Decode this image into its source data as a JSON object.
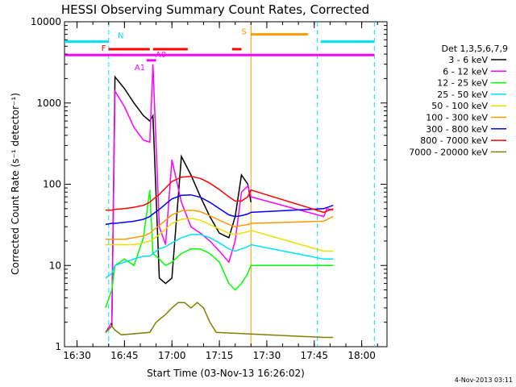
{
  "chart_data": {
    "type": "line",
    "title": "HESSI Observing Summary Count Rates, Corrected",
    "xlabel": "Start Time (03-Nov-13 16:26:02)",
    "ylabel": "Corrected Count Rate (s⁻¹ detector⁻¹)",
    "y_scale": "log",
    "ylim": [
      1,
      10000
    ],
    "xlim": [
      "16:26:02",
      "18:08:00"
    ],
    "x_ticks": [
      "16:30",
      "16:45",
      "17:00",
      "17:15",
      "17:30",
      "17:45",
      "18:00"
    ],
    "y_ticks": [
      "1",
      "10",
      "100",
      "1000",
      "10000"
    ],
    "grid": false,
    "legend_title": "Det 1,3,5,6,7,9",
    "legend_position": "right",
    "series": [
      {
        "name": "3 - 6 keV",
        "color": "#000000",
        "x": [
          "16:39",
          "16:41",
          "16:42",
          "16:45",
          "16:48",
          "16:51",
          "16:53",
          "16:54",
          "16:56",
          "16:58",
          "17:00",
          "17:03",
          "17:06",
          "17:09",
          "17:12",
          "17:15",
          "17:18",
          "17:20",
          "17:22",
          "17:24",
          "17:25"
        ],
        "y": [
          1.5,
          1.8,
          2100,
          1500,
          1000,
          700,
          600,
          700,
          7,
          6,
          7,
          220,
          130,
          70,
          40,
          25,
          22,
          40,
          130,
          100,
          60
        ]
      },
      {
        "name": "6 - 12 keV",
        "color": "#ff00ff",
        "x": [
          "16:39",
          "16:41",
          "16:42",
          "16:45",
          "16:48",
          "16:51",
          "16:53",
          "16:54",
          "16:56",
          "16:58",
          "17:00",
          "17:03",
          "17:06",
          "17:09",
          "17:12",
          "17:15",
          "17:18",
          "17:20",
          "17:22",
          "17:24",
          "17:25",
          "17:48",
          "17:49",
          "17:51"
        ],
        "y": [
          1.5,
          2,
          1400,
          900,
          500,
          350,
          330,
          3000,
          30,
          18,
          200,
          60,
          30,
          25,
          20,
          15,
          11,
          20,
          80,
          95,
          70,
          40,
          50,
          48
        ]
      },
      {
        "name": "12 - 25 keV",
        "color": "#00ff00",
        "x": [
          "16:39",
          "16:41",
          "16:42",
          "16:45",
          "16:48",
          "16:51",
          "16:53",
          "16:54",
          "16:56",
          "16:58",
          "17:00",
          "17:03",
          "17:06",
          "17:09",
          "17:12",
          "17:15",
          "17:18",
          "17:20",
          "17:22",
          "17:24",
          "17:25",
          "17:48",
          "17:51"
        ],
        "y": [
          3,
          5,
          10,
          12,
          10,
          22,
          85,
          14,
          12,
          10,
          11,
          14,
          16,
          16,
          14,
          11,
          6,
          5,
          6,
          8,
          10,
          10,
          10
        ]
      },
      {
        "name": "25 - 50 keV",
        "color": "#00e0ff",
        "x": [
          "16:39",
          "16:41",
          "16:42",
          "16:45",
          "16:48",
          "16:51",
          "16:53",
          "16:54",
          "16:56",
          "16:58",
          "17:00",
          "17:03",
          "17:06",
          "17:09",
          "17:12",
          "17:15",
          "17:18",
          "17:20",
          "17:22",
          "17:24",
          "17:25",
          "17:48",
          "17:51"
        ],
        "y": [
          7,
          8,
          10,
          11,
          12,
          13,
          13,
          14,
          16,
          17,
          19,
          22,
          24,
          24,
          22,
          19,
          16,
          15,
          16,
          17,
          18,
          12,
          12
        ]
      },
      {
        "name": "50 - 100 keV",
        "color": "#e8e000",
        "x": [
          "16:39",
          "16:41",
          "16:42",
          "16:45",
          "16:48",
          "16:51",
          "16:53",
          "16:54",
          "16:56",
          "16:58",
          "17:00",
          "17:03",
          "17:06",
          "17:09",
          "17:12",
          "17:15",
          "17:18",
          "17:20",
          "17:22",
          "17:24",
          "17:25",
          "17:48",
          "17:51"
        ],
        "y": [
          18,
          18,
          18,
          18,
          18,
          19,
          20,
          21,
          24,
          28,
          33,
          37,
          38,
          36,
          32,
          28,
          25,
          24,
          25,
          26,
          27,
          15,
          15
        ]
      },
      {
        "name": "100 - 300 keV",
        "color": "#ff9900",
        "x": [
          "16:39",
          "16:41",
          "16:42",
          "16:45",
          "16:48",
          "16:51",
          "16:53",
          "16:54",
          "16:56",
          "16:58",
          "17:00",
          "17:03",
          "17:06",
          "17:09",
          "17:12",
          "17:15",
          "17:18",
          "17:20",
          "17:22",
          "17:24",
          "17:25",
          "17:48",
          "17:51"
        ],
        "y": [
          21,
          21,
          21,
          21,
          22,
          23,
          25,
          27,
          31,
          36,
          42,
          47,
          48,
          46,
          41,
          36,
          32,
          30,
          31,
          32,
          33,
          35,
          40
        ]
      },
      {
        "name": "300 - 800 keV",
        "color": "#0000ff",
        "x": [
          "16:39",
          "16:41",
          "16:42",
          "16:45",
          "16:48",
          "16:51",
          "16:53",
          "16:54",
          "16:56",
          "16:58",
          "17:00",
          "17:03",
          "17:06",
          "17:09",
          "17:12",
          "17:15",
          "17:18",
          "17:20",
          "17:22",
          "17:24",
          "17:25",
          "17:48",
          "17:51"
        ],
        "y": [
          32,
          33,
          33,
          34,
          35,
          37,
          40,
          43,
          49,
          57,
          66,
          73,
          74,
          69,
          60,
          50,
          42,
          40,
          41,
          43,
          45,
          50,
          55
        ]
      },
      {
        "name": "800 - 7000 keV",
        "color": "#ff0000",
        "x": [
          "16:39",
          "16:41",
          "16:42",
          "16:45",
          "16:48",
          "16:51",
          "16:53",
          "16:54",
          "16:56",
          "16:58",
          "17:00",
          "17:03",
          "17:06",
          "17:09",
          "17:12",
          "17:15",
          "17:18",
          "17:20",
          "17:22",
          "17:24",
          "17:25",
          "17:48",
          "17:51"
        ],
        "y": [
          48,
          48,
          49,
          50,
          52,
          55,
          60,
          65,
          75,
          90,
          108,
          122,
          125,
          118,
          103,
          86,
          70,
          62,
          62,
          70,
          85,
          45,
          50
        ]
      },
      {
        "name": "7000 - 20000 keV",
        "color": "#808000",
        "x": [
          "16:39",
          "16:41",
          "16:42",
          "16:44",
          "16:53",
          "16:55",
          "16:58",
          "17:00",
          "17:02",
          "17:04",
          "17:06",
          "17:08",
          "17:10",
          "17:12",
          "17:14",
          "17:48",
          "17:51"
        ],
        "y": [
          1.5,
          1.8,
          1.6,
          1.4,
          1.5,
          2,
          2.5,
          3,
          3.5,
          3.5,
          3,
          3.5,
          3,
          2,
          1.5,
          1.3,
          1.3
        ]
      }
    ],
    "annotations": {
      "night_N": {
        "label": "N",
        "color": "#00e0ff",
        "y": 5700,
        "spans": [
          [
            "16:26",
            "16:40"
          ],
          [
            "17:47",
            "18:04"
          ]
        ]
      },
      "flare_F": {
        "label": "F",
        "color": "#ff0000",
        "y": 4600,
        "spans": [
          [
            "16:40",
            "16:53"
          ],
          [
            "16:54",
            "17:05"
          ],
          [
            "17:19",
            "17:22"
          ]
        ]
      },
      "saa_S": {
        "label": "S",
        "color": "#ff9900",
        "y": 7000,
        "spans": [
          [
            "17:25",
            "17:43"
          ]
        ]
      },
      "attenuator": {
        "labels": [
          "A1",
          "A0"
        ],
        "color": "#ff00ff",
        "y": 3350,
        "spans": [
          [
            "16:52",
            "16:55"
          ]
        ]
      },
      "decimation_line": {
        "color": "#ff00ff",
        "y": 3900,
        "spans": [
          [
            "16:26",
            "18:04"
          ]
        ]
      }
    },
    "vertical_lines": [
      {
        "x": "16:40",
        "color": "#00e0ff",
        "style": "dashed"
      },
      {
        "x": "17:25",
        "color": "#ff9900",
        "style": "solid"
      },
      {
        "x": "17:46",
        "color": "#00e0ff",
        "style": "dashed"
      },
      {
        "x": "18:04",
        "color": "#00e0ff",
        "style": "dashed"
      }
    ]
  },
  "stamp": "4-Nov-2013 03:11"
}
